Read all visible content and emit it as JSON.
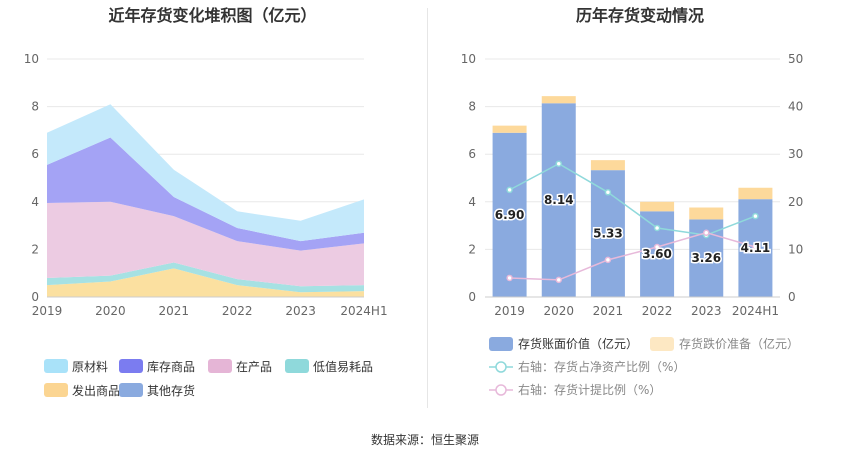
{
  "titles": {
    "left": "近年存货变化堆积图（亿元）",
    "right": "历年存货变动情况"
  },
  "source": "数据来源：恒生聚源",
  "chart_data": [
    {
      "type": "area",
      "stacked": true,
      "title": "近年存货变化堆积图（亿元）",
      "categories": [
        "2019",
        "2020",
        "2021",
        "2022",
        "2023",
        "2024H1"
      ],
      "ylim": [
        0,
        10
      ],
      "yticks": [
        0,
        2,
        4,
        6,
        8,
        10
      ],
      "grid": true,
      "legend_position": "bottom",
      "series": [
        {
          "name": "发出商品",
          "color": "#fbe0a0",
          "values": [
            0.5,
            0.65,
            1.2,
            0.5,
            0.2,
            0.25
          ]
        },
        {
          "name": "低值易耗品",
          "color": "#a6e1e3",
          "values": [
            0.3,
            0.25,
            0.25,
            0.25,
            0.25,
            0.25
          ]
        },
        {
          "name": "在产品",
          "color": "#eccbe2",
          "values": [
            3.15,
            3.1,
            1.95,
            1.6,
            1.5,
            1.75
          ]
        },
        {
          "name": "其他存货",
          "color": "#8aaadf",
          "values": [
            0,
            0,
            0,
            0,
            0,
            0
          ]
        },
        {
          "name": "库存商品",
          "color": "#a4a3f5",
          "values": [
            1.6,
            2.7,
            0.8,
            0.55,
            0.4,
            0.45
          ]
        },
        {
          "name": "原材料",
          "color": "#c4e9fb",
          "values": [
            1.35,
            1.4,
            1.15,
            0.7,
            0.85,
            1.4
          ]
        }
      ],
      "legend_order": [
        "原材料",
        "库存商品",
        "在产品",
        "低值易耗品",
        "发出商品",
        "其他存货"
      ],
      "legend_colors": {
        "原材料": "#a9e2f9",
        "库存商品": "#7b7cf0",
        "在产品": "#e5b5d6",
        "低值易耗品": "#8fd9db",
        "发出商品": "#fbd592",
        "其他存货": "#8aaadf"
      }
    },
    {
      "type": "bar",
      "stacked": true,
      "title": "历年存货变动情况",
      "categories": [
        "2019",
        "2020",
        "2021",
        "2022",
        "2023",
        "2024H1"
      ],
      "ylim": [
        0,
        10
      ],
      "yticks": [
        0,
        2,
        4,
        6,
        8,
        10
      ],
      "y2lim": [
        0,
        50
      ],
      "y2ticks": [
        0,
        10,
        20,
        30,
        40,
        50
      ],
      "grid": true,
      "legend_position": "bottom",
      "series": [
        {
          "name": "存货账面价值（亿元）",
          "color": "#8aaadf",
          "values": [
            6.9,
            8.14,
            5.33,
            3.6,
            3.26,
            4.11
          ],
          "labels": [
            "6.90",
            "8.14",
            "5.33",
            "3.60",
            "3.26",
            "4.11"
          ]
        },
        {
          "name": "存货跌价准备（亿元）",
          "color": "#fdd99b",
          "values": [
            0.3,
            0.3,
            0.42,
            0.4,
            0.5,
            0.48
          ]
        }
      ],
      "lines": [
        {
          "name": "右轴：存货占净资产比例（%）",
          "color": "#8fd9db",
          "axis": "right",
          "values": [
            22.5,
            28,
            22,
            14.5,
            13,
            17
          ]
        },
        {
          "name": "右轴：存货计提比例（%）",
          "color": "#e7b9da",
          "axis": "right",
          "values": [
            4,
            3.6,
            7.8,
            10.5,
            13.5,
            10.5
          ]
        }
      ]
    }
  ]
}
